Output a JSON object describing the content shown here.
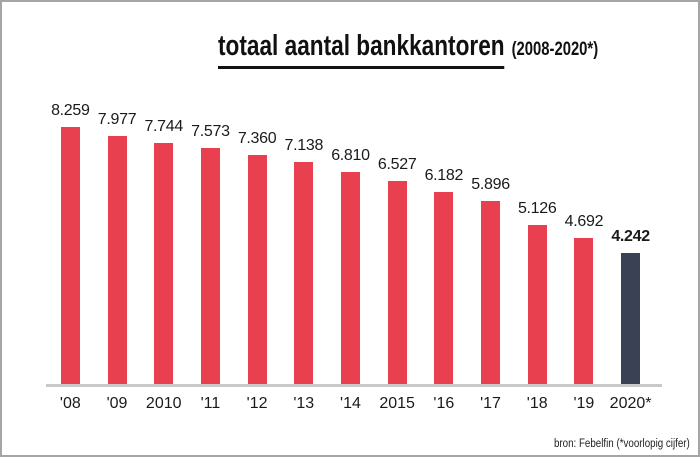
{
  "chart_data": {
    "type": "bar",
    "title": "totaal aantal bankkantoren",
    "subtitle": "(2008-2020*)",
    "categories": [
      "'08",
      "'09",
      "2010",
      "'11",
      "'12",
      "'13",
      "'14",
      "2015",
      "'16",
      "'17",
      "'18",
      "'19",
      "2020*"
    ],
    "values": [
      8259,
      7977,
      7744,
      7573,
      7360,
      7138,
      6810,
      6527,
      6182,
      5896,
      5126,
      4692,
      4242
    ],
    "value_labels": [
      "8.259",
      "7.977",
      "7.744",
      "7.573",
      "7.360",
      "7.138",
      "6.810",
      "6.527",
      "6.182",
      "5.896",
      "5.126",
      "4.692",
      "4.242"
    ],
    "bar_color": "#e8404f",
    "highlight_color": "#3b4154",
    "highlight_index": 12,
    "ylim": [
      0,
      8259
    ],
    "grid": "off",
    "legend": "none",
    "source": "bron: Febelfin (*voorlopig cijfer)"
  }
}
